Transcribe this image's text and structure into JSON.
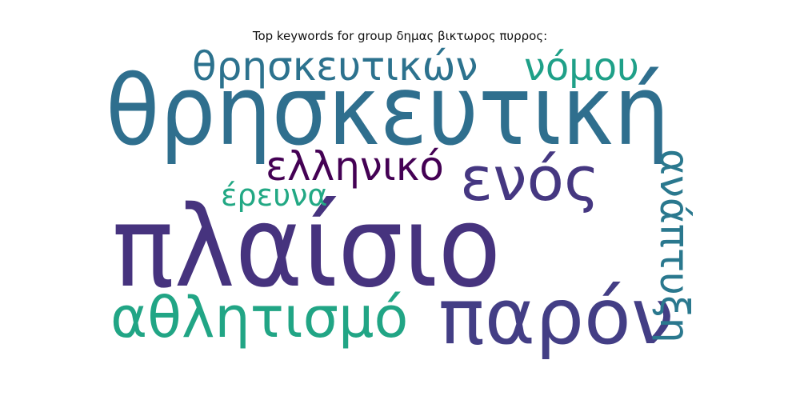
{
  "chart_data": {
    "type": "wordcloud",
    "title": "Top keywords for group δημας βικτωρος πυρρος:",
    "words": [
      {
        "text": "θρησκευτική",
        "color": "#2f6f8e"
      },
      {
        "text": "πλαίσιο",
        "color": "#46337e"
      },
      {
        "text": "παρόν",
        "color": "#433e85"
      },
      {
        "text": "ενός",
        "color": "#453781"
      },
      {
        "text": "αθλητισμό",
        "color": "#21a585"
      },
      {
        "text": "θρησκευτικών",
        "color": "#2c728e"
      },
      {
        "text": "ανάπτυξη",
        "color": "#2a788e"
      },
      {
        "text": "νόμου",
        "color": "#1fa088"
      },
      {
        "text": "ελληνικό",
        "color": "#440154"
      },
      {
        "text": "έρευνα",
        "color": "#22a884"
      }
    ]
  }
}
